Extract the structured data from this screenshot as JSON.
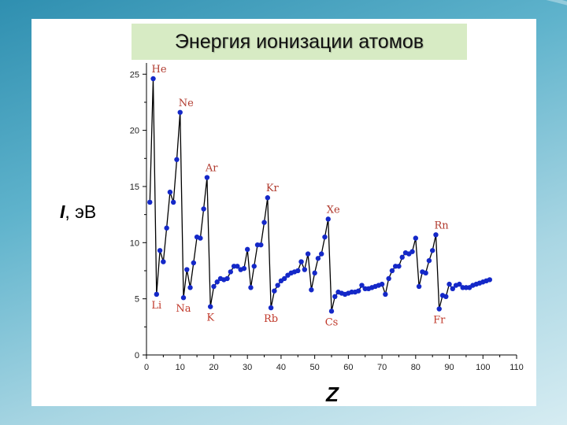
{
  "slide": {
    "title": "Энергия ионизации атомов",
    "y_axis_symbol": "I",
    "y_axis_unit": ", эВ",
    "x_axis_symbol": "Z"
  },
  "colors": {
    "title_bg": "#d7ebc4",
    "marker": "#1428c8",
    "line": "#000000",
    "noble_gas_label": "#b03a2e",
    "alkali_label": "#c0392b"
  },
  "chart_data": {
    "type": "line",
    "title": "Энергия ионизации атомов",
    "xlabel": "Z",
    "ylabel": "I, эВ",
    "xlim": [
      0,
      110
    ],
    "ylim": [
      0,
      26
    ],
    "x_ticks": [
      "0",
      "10",
      "20",
      "30",
      "40",
      "50",
      "60",
      "70",
      "80",
      "90",
      "100",
      "110"
    ],
    "y_ticks": [
      "0",
      "5",
      "10",
      "15",
      "20",
      "25"
    ],
    "grid": false,
    "series": [
      {
        "x": [
          1,
          2,
          3,
          4,
          5,
          6,
          7,
          8,
          9,
          10,
          11,
          12,
          13,
          14,
          15,
          16,
          17,
          18,
          19,
          20,
          21,
          22,
          23,
          24,
          25,
          26,
          27,
          28,
          29,
          30,
          31,
          32,
          33,
          34,
          35,
          36,
          37,
          38,
          39,
          40,
          41,
          42,
          43,
          44,
          45,
          46,
          47,
          48,
          49,
          50,
          51,
          52,
          53,
          54,
          55,
          56,
          57,
          58,
          59,
          60,
          61,
          62,
          63,
          64,
          65,
          66,
          67,
          68,
          69,
          70,
          71,
          72,
          73,
          74,
          75,
          76,
          77,
          78,
          79,
          80,
          81,
          82,
          83,
          84,
          85,
          86,
          87,
          88,
          89,
          90,
          91,
          92,
          93,
          94,
          95,
          96,
          97,
          98,
          99,
          100,
          101,
          102
        ],
        "values": [
          13.6,
          24.6,
          5.4,
          9.3,
          8.3,
          11.3,
          14.5,
          13.6,
          17.4,
          21.6,
          5.1,
          7.6,
          6.0,
          8.2,
          10.5,
          10.4,
          13.0,
          15.8,
          4.3,
          6.1,
          6.5,
          6.8,
          6.7,
          6.8,
          7.4,
          7.9,
          7.9,
          7.6,
          7.7,
          9.4,
          6.0,
          7.9,
          9.8,
          9.8,
          11.8,
          14.0,
          4.2,
          5.7,
          6.2,
          6.6,
          6.8,
          7.1,
          7.3,
          7.4,
          7.5,
          8.3,
          7.6,
          9.0,
          5.8,
          7.3,
          8.6,
          9.0,
          10.5,
          12.1,
          3.9,
          5.2,
          5.6,
          5.5,
          5.4,
          5.5,
          5.6,
          5.6,
          5.7,
          6.2,
          5.9,
          5.9,
          6.0,
          6.1,
          6.2,
          6.3,
          5.4,
          6.8,
          7.5,
          7.9,
          7.9,
          8.7,
          9.1,
          9.0,
          9.2,
          10.4,
          6.1,
          7.4,
          7.3,
          8.4,
          9.3,
          10.7,
          4.1,
          5.3,
          5.2,
          6.3,
          5.9,
          6.2,
          6.3,
          6.0,
          6.0,
          6.0,
          6.2,
          6.3,
          6.4,
          6.5,
          6.6,
          6.7
        ]
      }
    ],
    "annotations": [
      {
        "text": "He",
        "x": 2,
        "y": 24.6,
        "kind": "noble"
      },
      {
        "text": "Ne",
        "x": 10,
        "y": 21.6,
        "kind": "noble"
      },
      {
        "text": "Ar",
        "x": 18,
        "y": 15.8,
        "kind": "noble"
      },
      {
        "text": "Kr",
        "x": 36,
        "y": 14.0,
        "kind": "noble"
      },
      {
        "text": "Xe",
        "x": 54,
        "y": 12.1,
        "kind": "noble"
      },
      {
        "text": "Rn",
        "x": 86,
        "y": 10.7,
        "kind": "noble"
      },
      {
        "text": "Li",
        "x": 3,
        "y": 5.4,
        "kind": "alkali"
      },
      {
        "text": "Na",
        "x": 11,
        "y": 5.1,
        "kind": "alkali"
      },
      {
        "text": "K",
        "x": 19,
        "y": 4.3,
        "kind": "alkali"
      },
      {
        "text": "Rb",
        "x": 37,
        "y": 4.2,
        "kind": "alkali"
      },
      {
        "text": "Cs",
        "x": 55,
        "y": 3.9,
        "kind": "alkali"
      },
      {
        "text": "Fr",
        "x": 87,
        "y": 4.1,
        "kind": "alkali"
      }
    ]
  }
}
